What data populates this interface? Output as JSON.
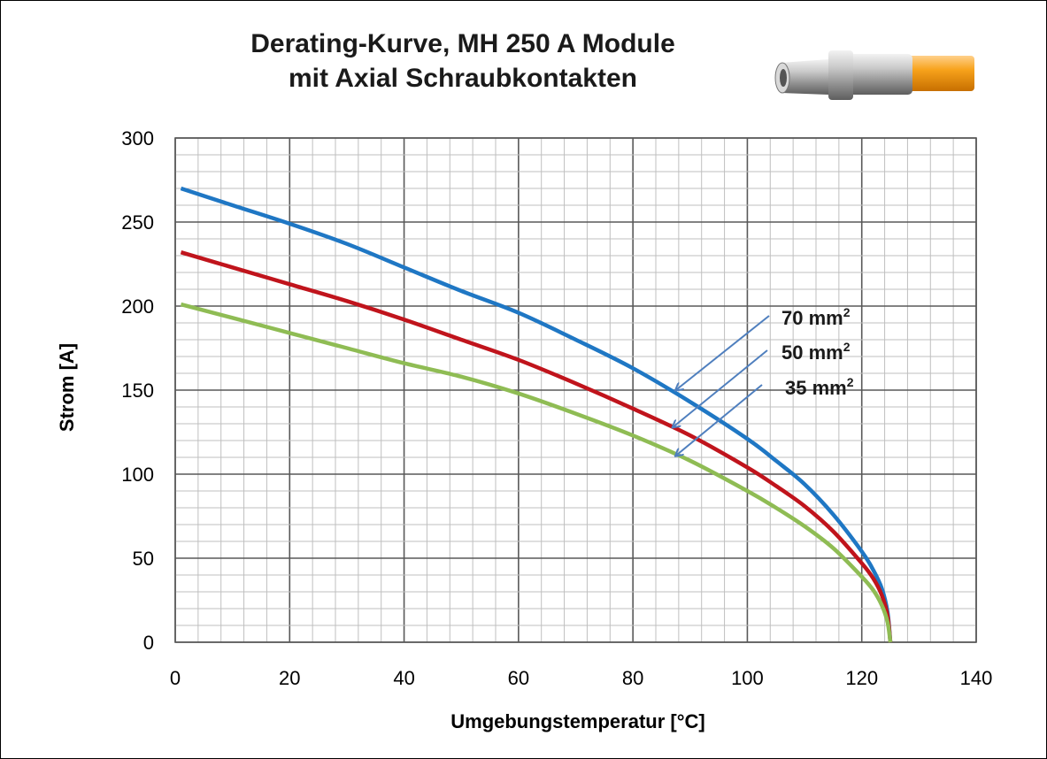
{
  "chart_data": {
    "type": "line",
    "title": [
      "Derating-Kurve, MH 250 A Module",
      "mit Axial Schraubkontakten"
    ],
    "xlabel": "Umgebungstemperatur [°C]",
    "ylabel": "Strom [A]",
    "xlim": [
      0,
      140
    ],
    "ylim": [
      0,
      300
    ],
    "x_ticks": [
      0,
      20,
      40,
      60,
      80,
      100,
      120,
      140
    ],
    "y_ticks": [
      0,
      50,
      100,
      150,
      200,
      250,
      300
    ],
    "x_tick_labels": [
      "0",
      "20",
      "40",
      "60",
      "80",
      "100",
      "120",
      "140"
    ],
    "y_tick_labels": [
      "0",
      "50",
      "100",
      "150",
      "200",
      "250",
      "300"
    ],
    "grid": "major and minor",
    "series": [
      {
        "color": "#1f77c4",
        "points": [
          [
            1,
            270
          ],
          [
            10,
            260
          ],
          [
            20,
            249
          ],
          [
            30,
            237
          ],
          [
            40,
            223
          ],
          [
            50,
            209
          ],
          [
            60,
            196
          ],
          [
            70,
            180
          ],
          [
            80,
            163
          ],
          [
            90,
            143
          ],
          [
            100,
            121
          ],
          [
            105,
            108
          ],
          [
            110,
            94
          ],
          [
            115,
            76
          ],
          [
            120,
            54
          ],
          [
            122,
            43
          ],
          [
            123.5,
            32
          ],
          [
            124.5,
            18
          ],
          [
            125,
            0
          ]
        ]
      },
      {
        "color": "#c0141c",
        "points": [
          [
            1,
            232
          ],
          [
            10,
            223
          ],
          [
            20,
            213
          ],
          [
            30,
            203
          ],
          [
            40,
            192
          ],
          [
            50,
            180
          ],
          [
            60,
            168
          ],
          [
            70,
            154
          ],
          [
            80,
            139
          ],
          [
            90,
            123
          ],
          [
            100,
            104
          ],
          [
            105,
            93
          ],
          [
            110,
            81
          ],
          [
            115,
            66
          ],
          [
            120,
            47
          ],
          [
            122,
            38
          ],
          [
            123.5,
            28
          ],
          [
            124.5,
            16
          ],
          [
            125,
            0
          ]
        ]
      },
      {
        "color": "#8fbc54",
        "points": [
          [
            1,
            201
          ],
          [
            10,
            193
          ],
          [
            20,
            184
          ],
          [
            30,
            175
          ],
          [
            40,
            166
          ],
          [
            50,
            158
          ],
          [
            60,
            148
          ],
          [
            70,
            136
          ],
          [
            80,
            123
          ],
          [
            90,
            108
          ],
          [
            100,
            90
          ],
          [
            105,
            80
          ],
          [
            110,
            69
          ],
          [
            115,
            56
          ],
          [
            120,
            39
          ],
          [
            122,
            31
          ],
          [
            123.5,
            22
          ],
          [
            124.5,
            12
          ],
          [
            125,
            0
          ]
        ]
      }
    ],
    "annotations": [
      {
        "label": "70 mm",
        "sup": "2",
        "arrow_to": [
          87.5,
          150
        ]
      },
      {
        "label": "50 mm",
        "sup": "2",
        "arrow_to": [
          87,
          128
        ]
      },
      {
        "label": "35 mm",
        "sup": "2",
        "arrow_to": [
          87.5,
          111
        ]
      }
    ]
  }
}
